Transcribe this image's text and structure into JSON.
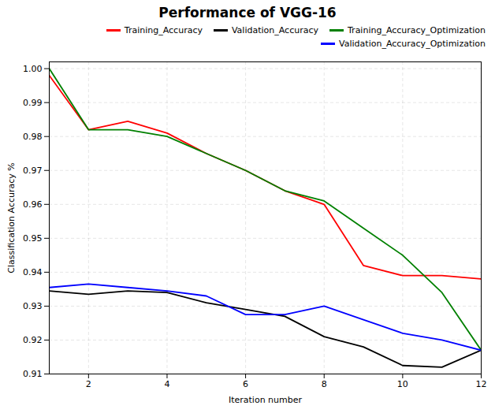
{
  "chart_data": {
    "type": "line",
    "title": "Performance of VGG-16",
    "xlabel": "Iteration number",
    "ylabel": "Classification Accuracy %",
    "x": [
      1,
      2,
      3,
      4,
      5,
      6,
      7,
      8,
      9,
      10,
      11,
      12
    ],
    "series": [
      {
        "name": "Training_Accuracy",
        "color": "red",
        "values": [
          0.998,
          0.982,
          0.9845,
          0.981,
          0.975,
          0.97,
          0.964,
          0.96,
          0.942,
          0.939,
          0.939,
          0.938
        ]
      },
      {
        "name": "Validation_Accuracy",
        "color": "black",
        "values": [
          0.9345,
          0.9335,
          0.9345,
          0.934,
          0.931,
          0.929,
          0.927,
          0.921,
          0.918,
          0.9125,
          0.912,
          0.917
        ]
      },
      {
        "name": "Training_Accuracy_Optimization",
        "color": "green",
        "values": [
          1.0,
          0.982,
          0.982,
          0.98,
          0.975,
          0.97,
          0.964,
          0.961,
          0.953,
          0.945,
          0.934,
          0.917
        ]
      },
      {
        "name": "Validation_Accuracy_Optimization",
        "color": "blue",
        "values": [
          0.9355,
          0.9365,
          0.9355,
          0.9345,
          0.933,
          0.9275,
          0.9275,
          0.93,
          0.926,
          0.922,
          0.92,
          0.917
        ]
      }
    ],
    "xlim": [
      1,
      12
    ],
    "xticks": [
      2,
      4,
      6,
      8,
      10,
      12
    ],
    "ylim": [
      0.91,
      1.002
    ],
    "yticks": [
      0.91,
      0.92,
      0.93,
      0.94,
      0.95,
      0.96,
      0.97,
      0.98,
      0.99,
      {
        "value": 1,
        "label": "1.00"
      }
    ],
    "grid": true,
    "legend": "upper right"
  }
}
